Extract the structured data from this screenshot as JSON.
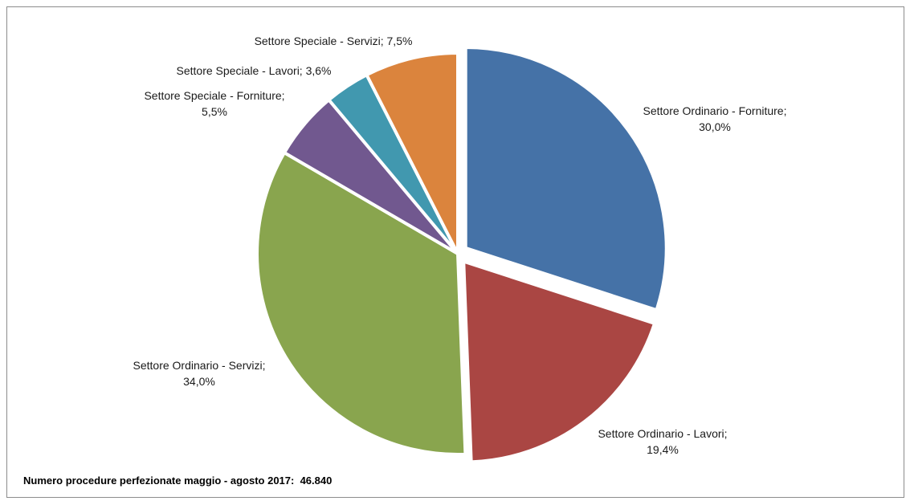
{
  "chart_data": {
    "type": "pie",
    "slices": [
      {
        "label_line1": "Settore Ordinario - Forniture;",
        "label_line2": "30,0%",
        "value": 30.0,
        "color": "#4572A7",
        "exploded": true
      },
      {
        "label_line1": "Settore Ordinario - Lavori;",
        "label_line2": "19,4%",
        "value": 19.4,
        "color": "#AA4643",
        "exploded": true
      },
      {
        "label_line1": "Settore Ordinario - Servizi;",
        "label_line2": "34,0%",
        "value": 34.0,
        "color": "#89A54E",
        "exploded": false
      },
      {
        "label_line1": "Settore Speciale - Forniture;",
        "label_line2": "5,5%",
        "value": 5.5,
        "color": "#71588F",
        "exploded": false
      },
      {
        "label_line1": "Settore Speciale - Lavori; 3,6%",
        "label_line2": "",
        "value": 3.6,
        "color": "#4198AF",
        "exploded": false
      },
      {
        "label_line1": "Settore Speciale - Servizi; 7,5%",
        "label_line2": "",
        "value": 7.5,
        "color": "#DB843D",
        "exploded": false
      }
    ],
    "start_angle_deg": 0,
    "direction": "clockwise"
  },
  "footnote": {
    "text": "Numero procedure perfezionate maggio - agosto 2017:  46.840"
  }
}
